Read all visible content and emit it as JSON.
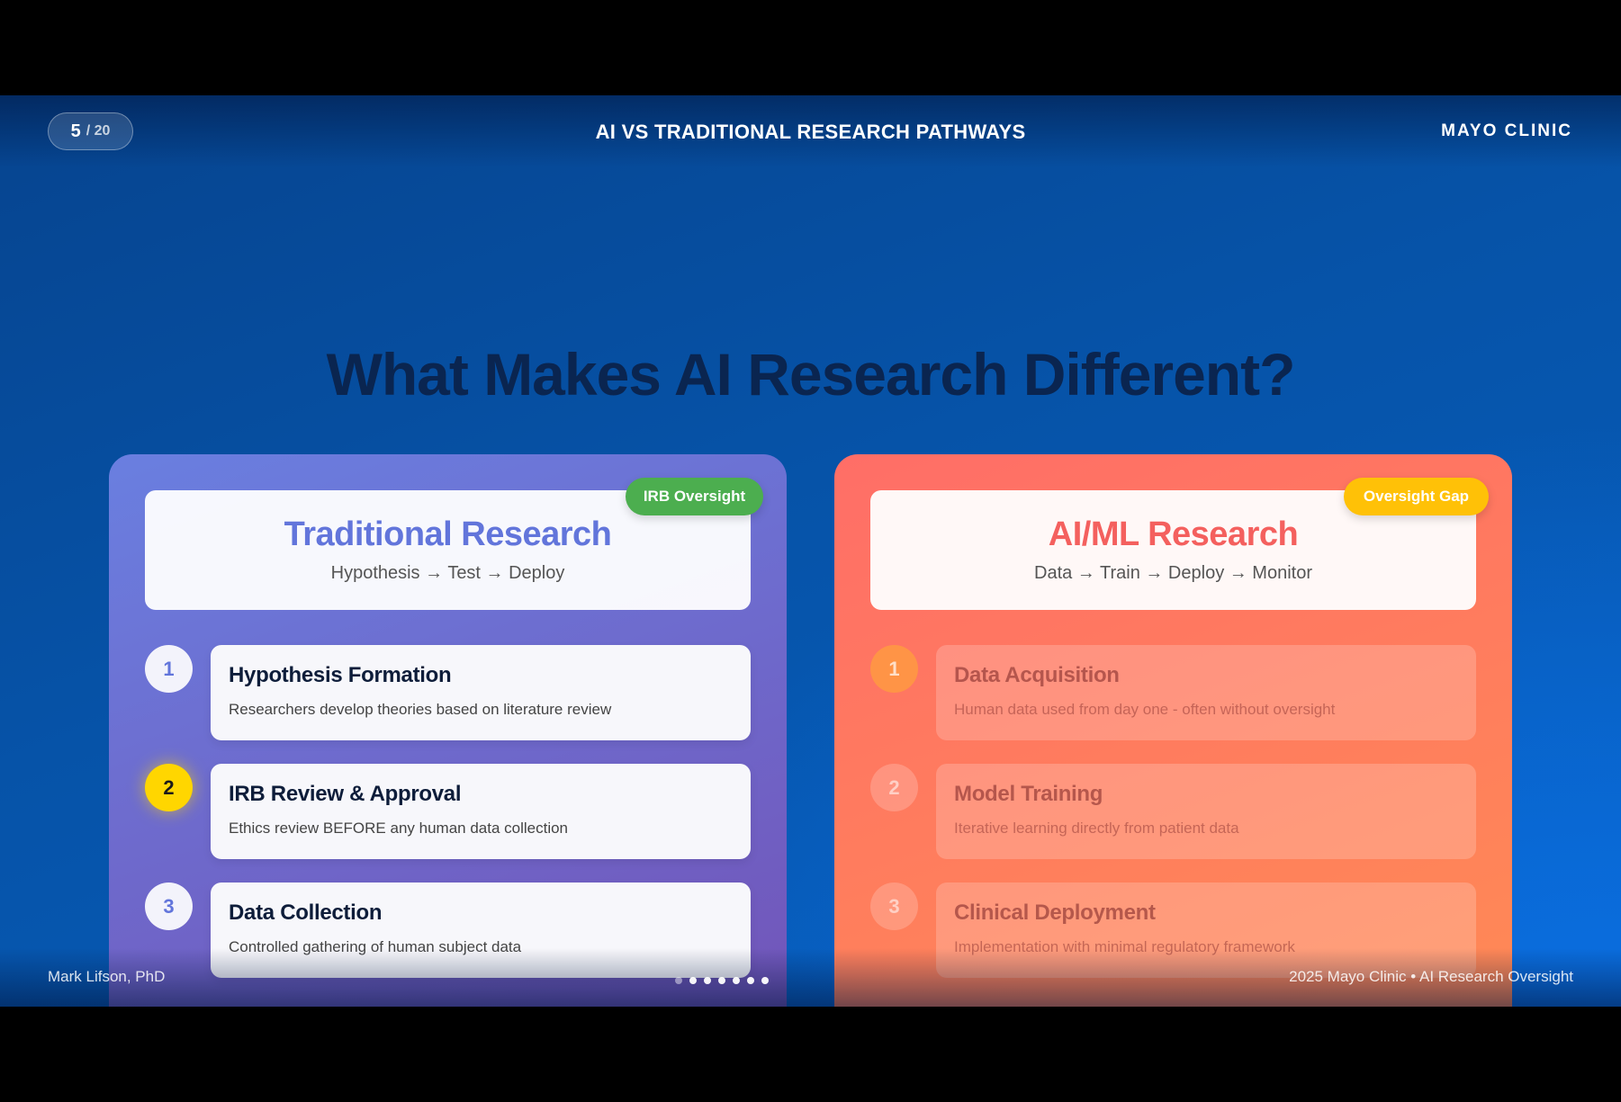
{
  "header": {
    "current_slide": "5",
    "total_slides": "/ 20",
    "section_title": "AI VS TRADITIONAL RESEARCH PATHWAYS",
    "brand": "MAYO CLINIC"
  },
  "headline": "What Makes AI Research Different?",
  "traditional": {
    "tag": "IRB Oversight",
    "title": "Traditional Research",
    "subtitle": "Hypothesis → Test → Deploy",
    "steps": [
      {
        "num": "1",
        "title": "Hypothesis Formation",
        "desc": "Researchers develop theories based on literature review"
      },
      {
        "num": "2",
        "title": "IRB Review & Approval",
        "desc": "Ethics review BEFORE any human data collection"
      },
      {
        "num": "3",
        "title": "Data Collection",
        "desc": "Controlled gathering of human subject data"
      }
    ]
  },
  "ai": {
    "tag": "Oversight Gap",
    "title": "AI/ML Research",
    "subtitle": "Data → Train → Deploy → Monitor",
    "steps": [
      {
        "num": "1",
        "title": "Data Acquisition",
        "desc": "Human data used from day one - often without oversight"
      },
      {
        "num": "2",
        "title": "Model Training",
        "desc": "Iterative learning directly from patient data"
      },
      {
        "num": "3",
        "title": "Clinical Deployment",
        "desc": "Implementation with minimal regulatory framework"
      }
    ]
  },
  "footer": {
    "author": "Mark Lifson, PhD",
    "right": "2025 Mayo Clinic • AI Research Oversight"
  },
  "colors": {
    "background": "#0653a8",
    "traditional_accent": "#6275db",
    "ai_accent": "#f4605e",
    "irb_tag": "#4cae4f",
    "gap_tag": "#ffc107",
    "active_step": "#ffd600"
  }
}
